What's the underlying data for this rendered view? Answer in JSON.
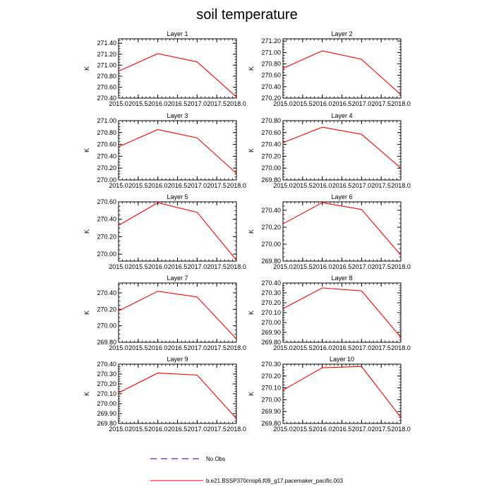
{
  "figure": {
    "title": "soil temperature",
    "colors": {
      "model": "#ff0000",
      "obs": "#0000aa",
      "axis": "#000000"
    }
  },
  "legend": {
    "items": [
      {
        "label": "No Obs",
        "style": "dashed",
        "color": "#0000aa"
      },
      {
        "label": "b.e21.BSSP370cmip6.f09_g17.pacemaker_pacific.003",
        "style": "solid",
        "color": "#ff0000"
      }
    ]
  },
  "chart_data": [
    {
      "type": "line",
      "title": "Layer 1",
      "ylabel": "K",
      "x": [
        2015,
        2016,
        2017,
        2018
      ],
      "xlim": [
        2015,
        2018
      ],
      "xticks": [
        2015.0,
        2015.5,
        2016.0,
        2016.5,
        2017.0,
        2017.5,
        2018.0
      ],
      "ylim": [
        270.4,
        271.48
      ],
      "yticks": [
        270.4,
        270.6,
        270.8,
        271.0,
        271.2,
        271.4
      ],
      "series": [
        {
          "values": [
            270.89,
            271.21,
            271.06,
            270.42
          ]
        }
      ]
    },
    {
      "type": "line",
      "title": "Layer 2",
      "ylabel": "K",
      "x": [
        2015,
        2016,
        2017,
        2018
      ],
      "xlim": [
        2015,
        2018
      ],
      "xticks": [
        2015.0,
        2015.5,
        2016.0,
        2016.5,
        2017.0,
        2017.5,
        2018.0
      ],
      "ylim": [
        270.2,
        271.24
      ],
      "yticks": [
        270.2,
        270.4,
        270.6,
        270.8,
        271.0,
        271.2
      ],
      "series": [
        {
          "values": [
            270.72,
            271.03,
            270.88,
            270.26
          ]
        }
      ]
    },
    {
      "type": "line",
      "title": "Layer 3",
      "ylabel": "K",
      "x": [
        2015,
        2016,
        2017,
        2018
      ],
      "xlim": [
        2015,
        2018
      ],
      "xticks": [
        2015.0,
        2015.5,
        2016.0,
        2016.5,
        2017.0,
        2017.5,
        2018.0
      ],
      "ylim": [
        270.0,
        271.0
      ],
      "yticks": [
        270.0,
        270.2,
        270.4,
        270.6,
        270.8,
        271.0
      ],
      "series": [
        {
          "values": [
            270.56,
            270.85,
            270.71,
            270.11
          ]
        }
      ]
    },
    {
      "type": "line",
      "title": "Layer 4",
      "ylabel": "K",
      "x": [
        2015,
        2016,
        2017,
        2018
      ],
      "xlim": [
        2015,
        2018
      ],
      "xticks": [
        2015.0,
        2015.5,
        2016.0,
        2016.5,
        2017.0,
        2017.5,
        2018.0
      ],
      "ylim": [
        269.8,
        270.8
      ],
      "yticks": [
        269.8,
        270.0,
        270.2,
        270.4,
        270.6,
        270.8
      ],
      "series": [
        {
          "values": [
            270.43,
            270.69,
            270.57,
            270.0
          ]
        }
      ]
    },
    {
      "type": "line",
      "title": "Layer 5",
      "ylabel": "K",
      "x": [
        2015,
        2016,
        2017,
        2018
      ],
      "xlim": [
        2015,
        2018
      ],
      "xticks": [
        2015.0,
        2015.5,
        2016.0,
        2016.5,
        2017.0,
        2017.5,
        2018.0
      ],
      "ylim": [
        269.92,
        270.6
      ],
      "yticks": [
        270.0,
        270.2,
        270.4,
        270.6
      ],
      "series": [
        {
          "values": [
            270.33,
            270.59,
            270.48,
            269.93
          ]
        }
      ]
    },
    {
      "type": "line",
      "title": "Layer 6",
      "ylabel": "K",
      "x": [
        2015,
        2016,
        2017,
        2018
      ],
      "xlim": [
        2015,
        2018
      ],
      "xticks": [
        2015.0,
        2015.5,
        2016.0,
        2016.5,
        2017.0,
        2017.5,
        2018.0
      ],
      "ylim": [
        269.8,
        270.5
      ],
      "yticks": [
        269.8,
        270.0,
        270.2,
        270.4
      ],
      "series": [
        {
          "values": [
            270.24,
            270.49,
            270.41,
            269.87
          ]
        }
      ]
    },
    {
      "type": "line",
      "title": "Layer 7",
      "ylabel": "K",
      "x": [
        2015,
        2016,
        2017,
        2018
      ],
      "xlim": [
        2015,
        2018
      ],
      "xticks": [
        2015.0,
        2015.5,
        2016.0,
        2016.5,
        2017.0,
        2017.5,
        2018.0
      ],
      "ylim": [
        269.8,
        270.52
      ],
      "yticks": [
        269.8,
        270.0,
        270.2,
        270.4
      ],
      "series": [
        {
          "values": [
            270.18,
            270.42,
            270.35,
            269.84
          ]
        }
      ]
    },
    {
      "type": "line",
      "title": "Layer 8",
      "ylabel": "K",
      "x": [
        2015,
        2016,
        2017,
        2018
      ],
      "xlim": [
        2015,
        2018
      ],
      "xticks": [
        2015.0,
        2015.5,
        2016.0,
        2016.5,
        2017.0,
        2017.5,
        2018.0
      ],
      "ylim": [
        269.8,
        270.4
      ],
      "yticks": [
        269.8,
        269.9,
        270.0,
        270.1,
        270.2,
        270.3,
        270.4
      ],
      "series": [
        {
          "values": [
            270.14,
            270.35,
            270.32,
            269.85
          ]
        }
      ]
    },
    {
      "type": "line",
      "title": "Layer 9",
      "ylabel": "K",
      "x": [
        2015,
        2016,
        2017,
        2018
      ],
      "xlim": [
        2015,
        2018
      ],
      "xticks": [
        2015.0,
        2015.5,
        2016.0,
        2016.5,
        2017.0,
        2017.5,
        2018.0
      ],
      "ylim": [
        269.8,
        270.4
      ],
      "yticks": [
        269.8,
        269.9,
        270.0,
        270.1,
        270.2,
        270.3,
        270.4
      ],
      "series": [
        {
          "values": [
            270.11,
            270.31,
            270.29,
            269.85
          ]
        }
      ]
    },
    {
      "type": "line",
      "title": "Layer 10",
      "ylabel": "K",
      "x": [
        2015,
        2016,
        2017,
        2018
      ],
      "xlim": [
        2015,
        2018
      ],
      "xticks": [
        2015.0,
        2015.5,
        2016.0,
        2016.5,
        2017.0,
        2017.5,
        2018.0
      ],
      "ylim": [
        269.8,
        270.3
      ],
      "yticks": [
        269.8,
        269.9,
        270.0,
        270.1,
        270.2,
        270.3
      ],
      "series": [
        {
          "values": [
            270.08,
            270.27,
            270.28,
            269.85
          ]
        }
      ]
    }
  ]
}
